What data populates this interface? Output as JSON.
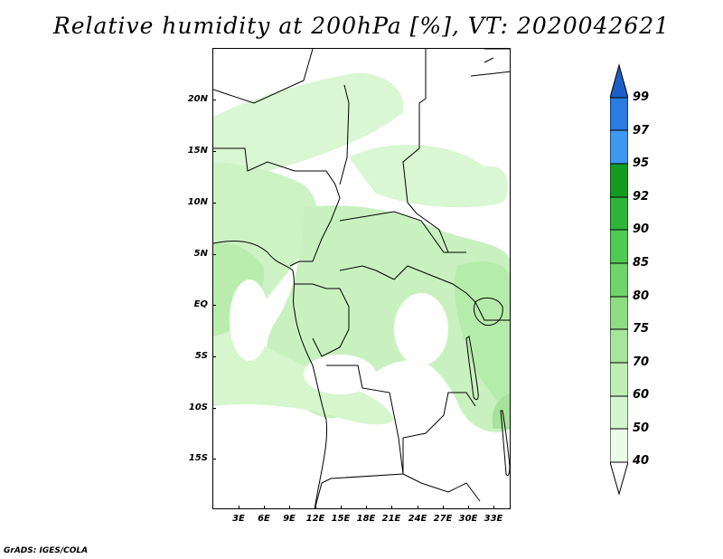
{
  "title": "Relative humidity at 200hPa [%], VT: 2020042621",
  "footer": "GrADS: IGES/COLA",
  "axes": {
    "lat_labels": [
      "20N",
      "15N",
      "10N",
      "5N",
      "EQ",
      "5S",
      "10S",
      "15S"
    ],
    "lon_labels": [
      "3E",
      "6E",
      "9E",
      "12E",
      "15E",
      "18E",
      "21E",
      "24E",
      "27E",
      "30E",
      "33E"
    ]
  },
  "colorbar": {
    "levels": [
      "40",
      "50",
      "60",
      "70",
      "75",
      "80",
      "85",
      "90",
      "92",
      "95",
      "97",
      "99"
    ],
    "colors": [
      "#ffffff",
      "#eafbe6",
      "#d4f6ce",
      "#bfefb5",
      "#a7e59d",
      "#8edd83",
      "#6fd56a",
      "#4fca52",
      "#2fb53a",
      "#169b22",
      "#3e98f0",
      "#2a7ce0",
      "#1c5ec8"
    ]
  },
  "chart_data": {
    "type": "heatmap",
    "title": "Relative humidity at 200hPa [%], VT: 2020042621",
    "variable": "Relative humidity",
    "units": "%",
    "level": "200hPa",
    "valid_time": "2020042621",
    "lon_range": [
      0,
      35
    ],
    "lat_range": [
      -20,
      25
    ],
    "contour_levels": [
      40,
      50,
      60,
      70,
      75,
      80,
      85,
      90,
      92,
      95,
      97,
      99
    ],
    "observed_max_band": "75-80"
  }
}
